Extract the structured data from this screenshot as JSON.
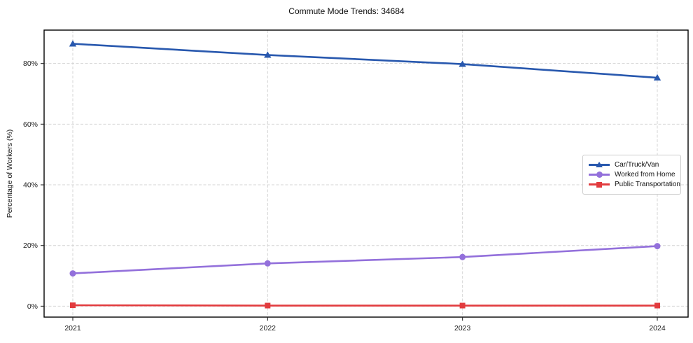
{
  "title": "Commute Mode Trends: 34684",
  "chart_data": {
    "type": "line",
    "title": "Commute Mode Trends: 34684",
    "xlabel": "",
    "ylabel": "Percentage of Workers (%)",
    "x": [
      2021,
      2022,
      2023,
      2024
    ],
    "x_tick_labels": [
      "2021",
      "2022",
      "2023",
      "2024"
    ],
    "y_ticks": [
      0,
      20,
      40,
      60,
      80
    ],
    "y_tick_labels": [
      "0%",
      "20%",
      "40%",
      "60%",
      "80%"
    ],
    "ylim": [
      -3.6,
      91
    ],
    "grid": true,
    "legend_position": "center-right",
    "series": [
      {
        "name": "Car/Truck/Van",
        "color": "#2858ae",
        "marker": "triangle",
        "values": [
          86.5,
          82.8,
          79.8,
          75.3
        ]
      },
      {
        "name": "Worked from Home",
        "color": "#9370DB",
        "marker": "circle",
        "values": [
          10.8,
          14.1,
          16.2,
          19.8
        ]
      },
      {
        "name": "Public Transportation",
        "color": "#e23b3e",
        "marker": "square",
        "values": [
          0.3,
          0.2,
          0.2,
          0.2
        ]
      }
    ]
  }
}
